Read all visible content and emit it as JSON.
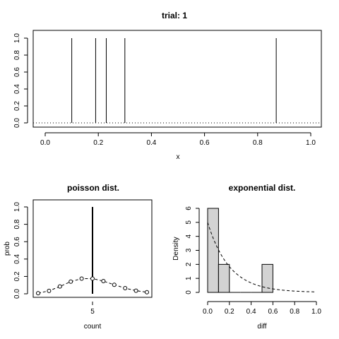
{
  "chart_data": [
    {
      "type": "spike",
      "title": "trial: 1",
      "xlabel": "x",
      "ylabel": "",
      "xlim": [
        0,
        1
      ],
      "ylim": [
        0,
        1
      ],
      "x_ticks": [
        "0.0",
        "0.2",
        "0.4",
        "0.6",
        "0.8",
        "1.0"
      ],
      "y_ticks": [
        "0.0",
        "0.2",
        "0.4",
        "0.6",
        "0.8",
        "1.0"
      ],
      "events": [
        0.1,
        0.19,
        0.23,
        0.3,
        0.87
      ],
      "event_height": 1.0,
      "baseline": 0.0,
      "baseline_style": "dotted",
      "grid": false
    },
    {
      "type": "line",
      "title": "poisson dist.",
      "xlabel": "count",
      "ylabel": "prob",
      "ylim": [
        0,
        1
      ],
      "x_ticks": [
        "5"
      ],
      "y_ticks": [
        "0.0",
        "0.2",
        "0.4",
        "0.6",
        "0.8",
        "1.0"
      ],
      "x": [
        0,
        1,
        2,
        3,
        4,
        5,
        6,
        7,
        8,
        9,
        10
      ],
      "pmf": [
        0.007,
        0.034,
        0.084,
        0.14,
        0.175,
        0.175,
        0.146,
        0.104,
        0.065,
        0.036,
        0.018
      ],
      "observed_count": 5,
      "observed_height": 1.0,
      "line_style": "dashed",
      "marker": "open-circle",
      "grid": false
    },
    {
      "type": "bar",
      "title": "exponential dist.",
      "xlabel": "diff",
      "ylabel": "Density",
      "xlim": [
        0,
        1
      ],
      "ylim": [
        0,
        6
      ],
      "x_ticks": [
        "0.0",
        "0.2",
        "0.4",
        "0.6",
        "0.8",
        "1.0"
      ],
      "y_ticks": [
        "0",
        "1",
        "2",
        "3",
        "4",
        "5",
        "6"
      ],
      "bins": [
        {
          "from": 0.0,
          "to": 0.1,
          "density": 6
        },
        {
          "from": 0.1,
          "to": 0.2,
          "density": 2
        },
        {
          "from": 0.2,
          "to": 0.3,
          "density": 0
        },
        {
          "from": 0.3,
          "to": 0.4,
          "density": 0
        },
        {
          "from": 0.4,
          "to": 0.5,
          "density": 0
        },
        {
          "from": 0.5,
          "to": 0.6,
          "density": 2
        }
      ],
      "density_curve": {
        "rate": 5,
        "style": "dashed"
      },
      "bar_color": "#d3d3d3",
      "grid": false
    }
  ]
}
